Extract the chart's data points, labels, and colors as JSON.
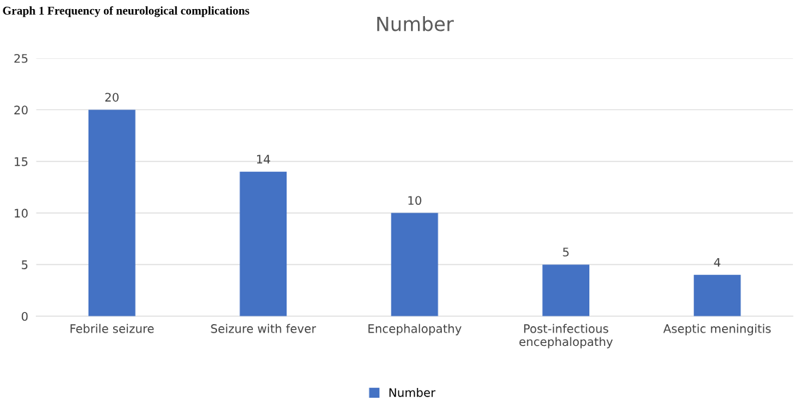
{
  "chart_data": {
    "type": "bar",
    "title": "Number",
    "annotations": [
      "Graph 1 Frequency of neurological complications"
    ],
    "categories": [
      "Febrile seizure",
      "Seizure with fever",
      "Encephalopathy",
      "Post-infectious\nencephalopathy",
      "Aseptic meningitis"
    ],
    "series": [
      {
        "name": "Number",
        "color": "#4472c4",
        "values": [
          20,
          14,
          10,
          5,
          4
        ]
      }
    ],
    "ylim": [
      0,
      25
    ],
    "yticks": [
      0,
      5,
      10,
      15,
      20,
      25
    ],
    "grid": "y",
    "legend": "bottom",
    "data_labels": true
  }
}
